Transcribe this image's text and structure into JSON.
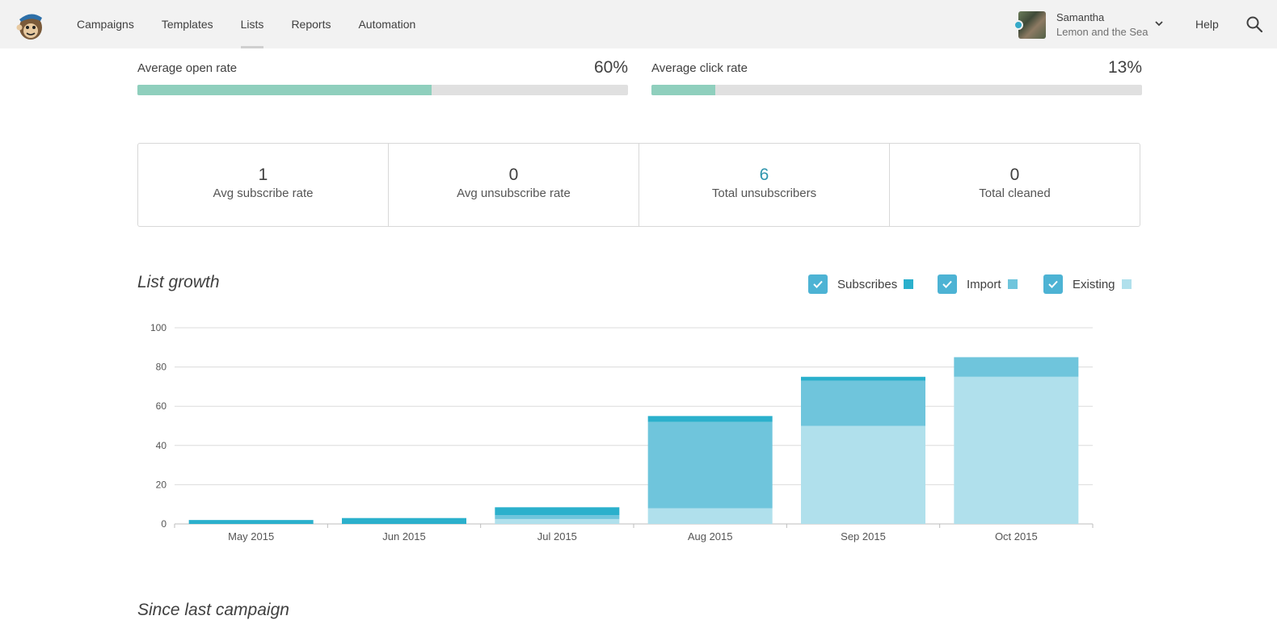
{
  "nav": {
    "items": [
      {
        "label": "Campaigns",
        "active": false
      },
      {
        "label": "Templates",
        "active": false
      },
      {
        "label": "Lists",
        "active": true
      },
      {
        "label": "Reports",
        "active": false
      },
      {
        "label": "Automation",
        "active": false
      }
    ],
    "account_name": "Samantha",
    "account_org": "Lemon and the Sea",
    "help_label": "Help"
  },
  "rates": {
    "open": {
      "label": "Average open rate",
      "value_text": "60%",
      "fraction": 0.6
    },
    "click": {
      "label": "Average click rate",
      "value_text": "13%",
      "fraction": 0.13
    }
  },
  "stats": [
    {
      "value": "1",
      "label": "Avg subscribe rate",
      "highlight": false
    },
    {
      "value": "0",
      "label": "Avg unsubscribe rate",
      "highlight": false
    },
    {
      "value": "6",
      "label": "Total unsubscribers",
      "highlight": true
    },
    {
      "value": "0",
      "label": "Total cleaned",
      "highlight": false
    }
  ],
  "list_growth": {
    "title": "List growth",
    "legend": [
      {
        "label": "Subscribes",
        "checked": true,
        "color": "#2bb0cc"
      },
      {
        "label": "Import",
        "checked": true,
        "color": "#6fc5dc"
      },
      {
        "label": "Existing",
        "checked": true,
        "color": "#b0e0ec"
      }
    ]
  },
  "chart_data": {
    "type": "bar",
    "stacked": true,
    "categories": [
      "May 2015",
      "Jun 2015",
      "Jul 2015",
      "Aug 2015",
      "Sep 2015",
      "Oct 2015"
    ],
    "series": [
      {
        "name": "Existing",
        "values": [
          0,
          0,
          2.5,
          8,
          50,
          75
        ],
        "color": "#b0e0ec"
      },
      {
        "name": "Import",
        "values": [
          0,
          0,
          2,
          44,
          23,
          10
        ],
        "color": "#6fc5dc"
      },
      {
        "name": "Subscribes",
        "values": [
          2,
          3,
          4,
          3,
          2,
          0
        ],
        "color": "#2bb0cc"
      }
    ],
    "ylim": [
      0,
      100
    ],
    "yticks": [
      0,
      20,
      40,
      60,
      80,
      100
    ],
    "grid": true
  },
  "next_section_title": "Since last campaign"
}
